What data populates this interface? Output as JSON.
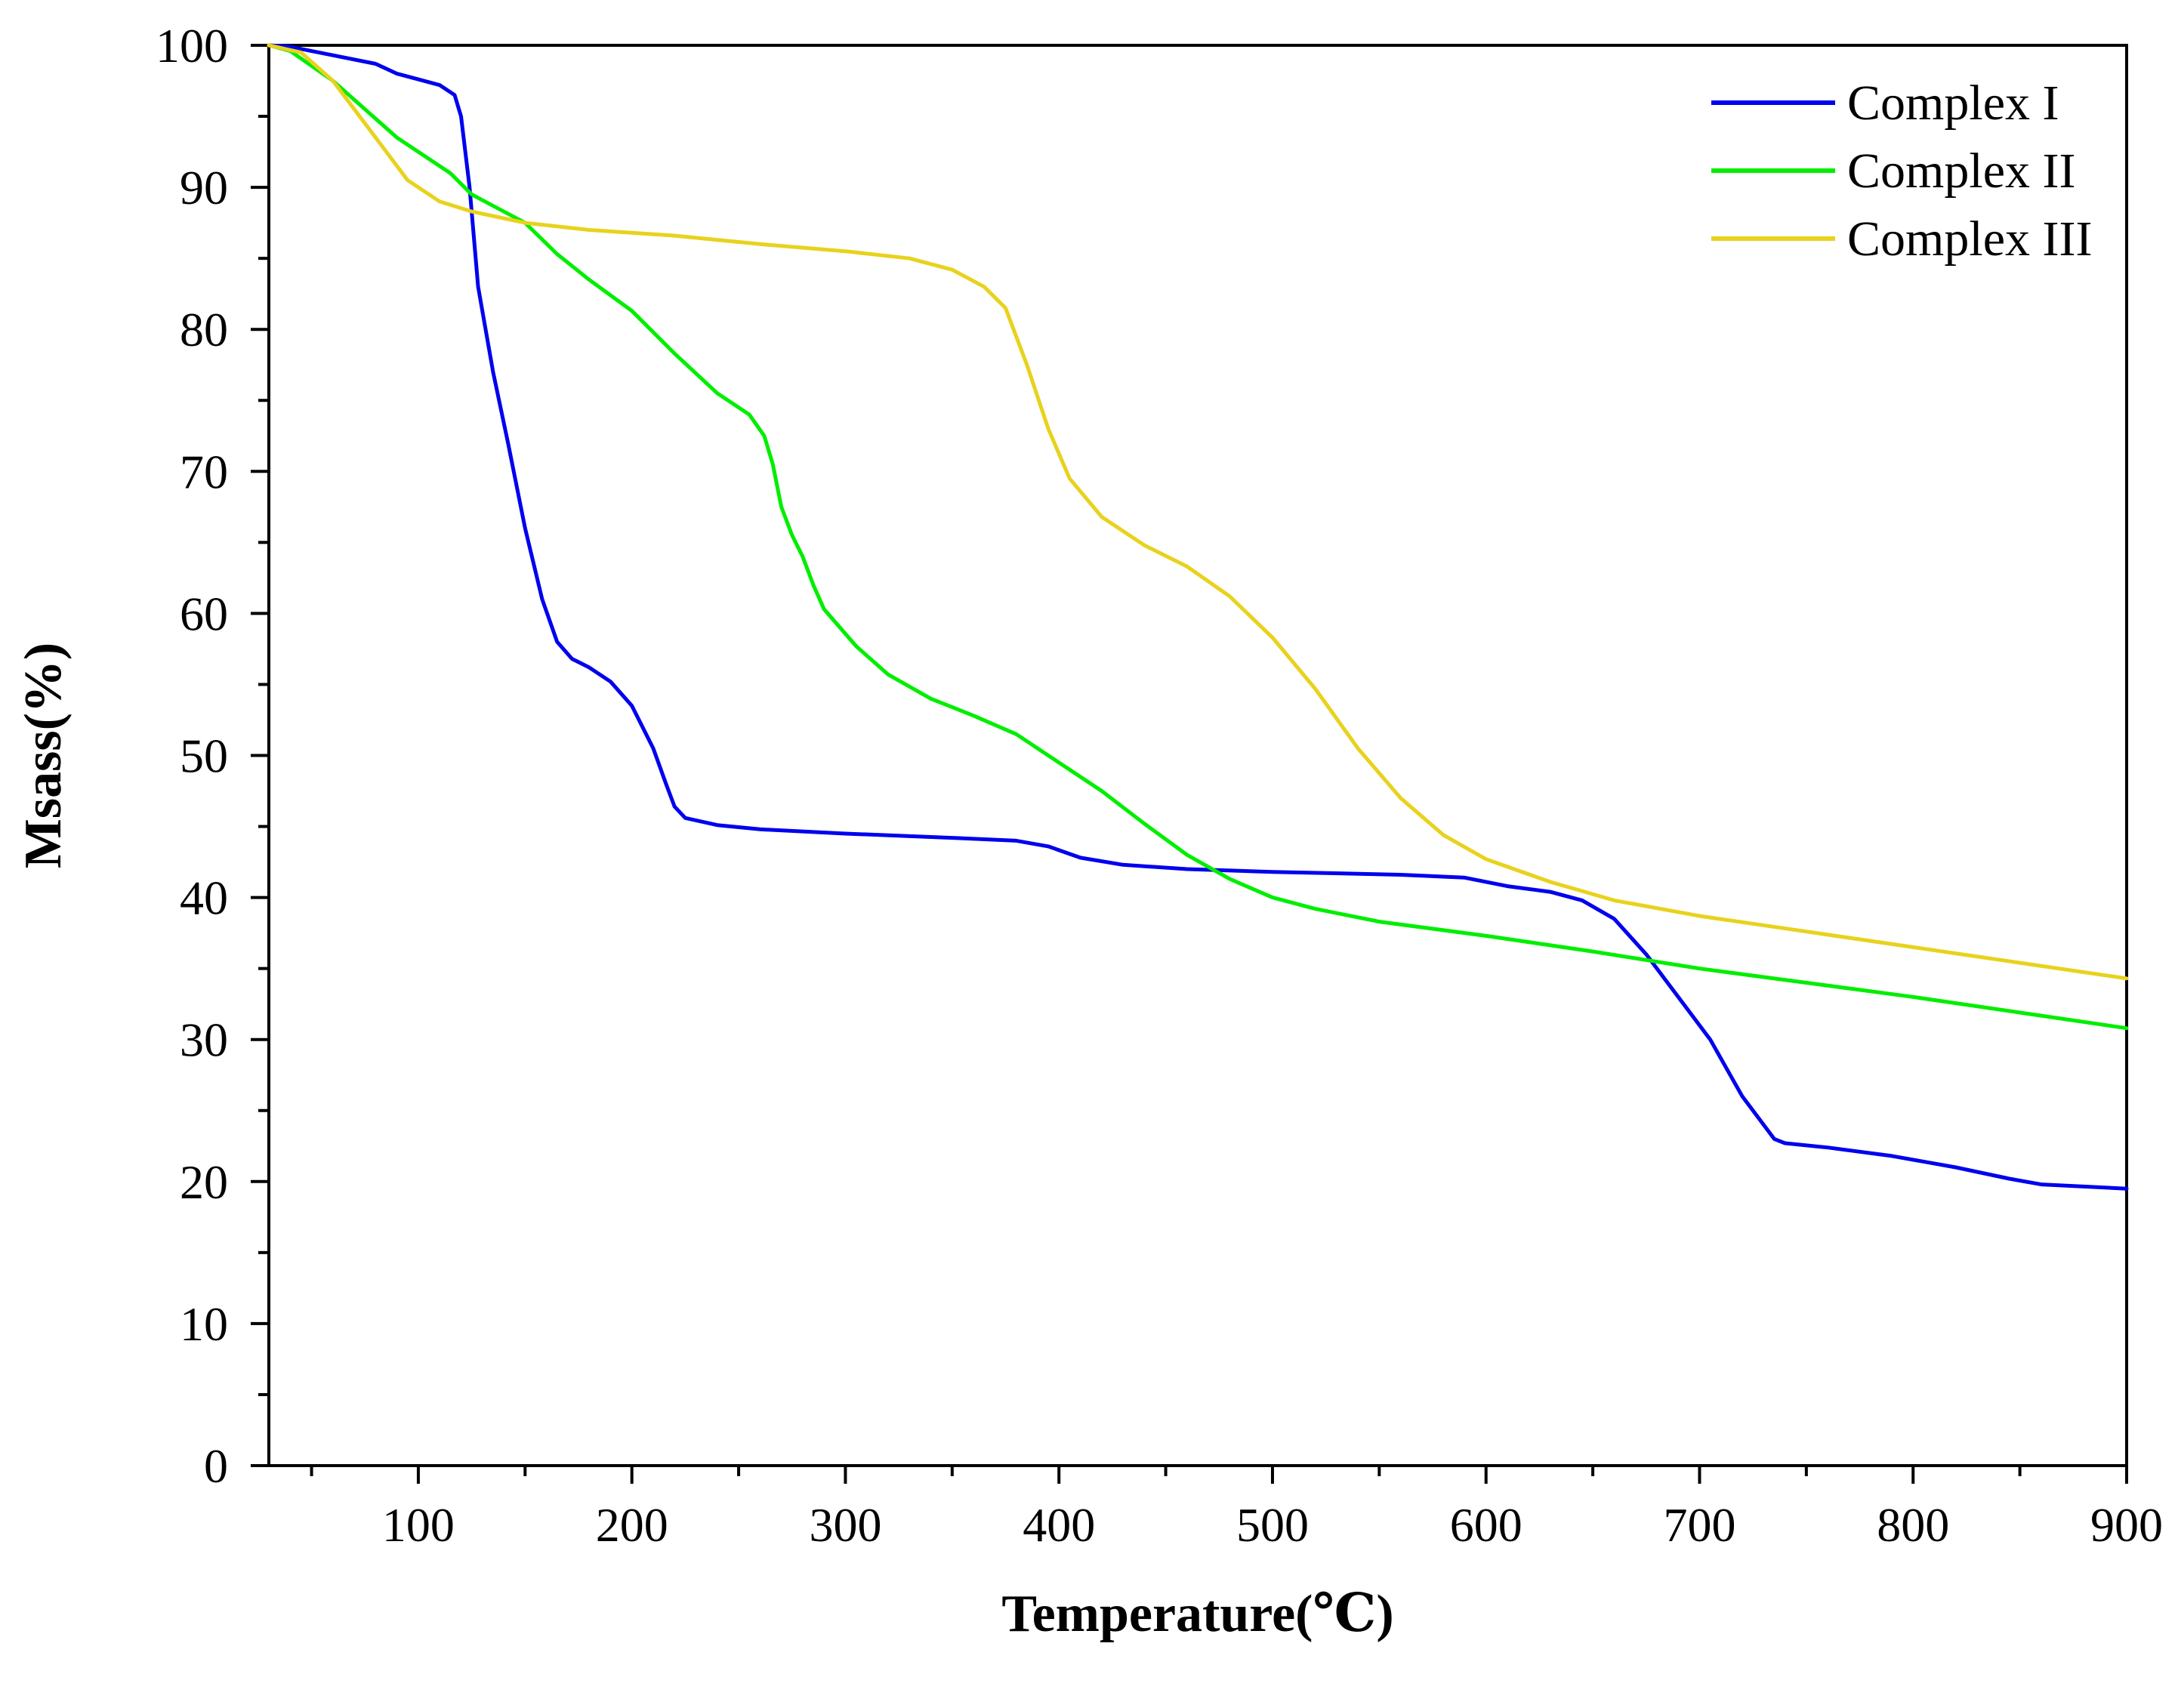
{
  "chart_data": {
    "type": "line",
    "title": "",
    "xlabel": "Temperature(℃)",
    "ylabel": "Msass(%)",
    "xlim": [
      30,
      900
    ],
    "ylim": [
      0,
      100
    ],
    "x_ticks": [
      100,
      200,
      300,
      400,
      500,
      600,
      700,
      800,
      900
    ],
    "x_tick_labels": [
      "100",
      "200",
      "300",
      "400",
      "500",
      "600",
      "700",
      "800",
      "900"
    ],
    "y_ticks": [
      0,
      10,
      20,
      30,
      40,
      50,
      60,
      70,
      80,
      90,
      100
    ],
    "y_tick_labels": [
      "0",
      "10",
      "20",
      "30",
      "40",
      "50",
      "60",
      "70",
      "80",
      "90",
      "100"
    ],
    "grid": false,
    "legend_position": "top-right",
    "series": [
      {
        "name": "Complex I",
        "color": "#0000ee",
        "points": [
          [
            30,
            100
          ],
          [
            40,
            99.9
          ],
          [
            60,
            99.3
          ],
          [
            80,
            98.7
          ],
          [
            90,
            98
          ],
          [
            100,
            97.6
          ],
          [
            110,
            97.2
          ],
          [
            117,
            96.5
          ],
          [
            120,
            95
          ],
          [
            124,
            90
          ],
          [
            128,
            83
          ],
          [
            135,
            77
          ],
          [
            142,
            72
          ],
          [
            150,
            66
          ],
          [
            158,
            61
          ],
          [
            165,
            58
          ],
          [
            172,
            56.8
          ],
          [
            180,
            56.2
          ],
          [
            190,
            55.2
          ],
          [
            200,
            53.5
          ],
          [
            210,
            50.5
          ],
          [
            216,
            48
          ],
          [
            220,
            46.4
          ],
          [
            225,
            45.6
          ],
          [
            240,
            45.1
          ],
          [
            260,
            44.8
          ],
          [
            300,
            44.5
          ],
          [
            350,
            44.2
          ],
          [
            380,
            44
          ],
          [
            395,
            43.6
          ],
          [
            410,
            42.8
          ],
          [
            430,
            42.3
          ],
          [
            460,
            42
          ],
          [
            500,
            41.8
          ],
          [
            560,
            41.6
          ],
          [
            590,
            41.4
          ],
          [
            610,
            40.8
          ],
          [
            630,
            40.4
          ],
          [
            645,
            39.8
          ],
          [
            660,
            38.5
          ],
          [
            675,
            36
          ],
          [
            690,
            33
          ],
          [
            705,
            30
          ],
          [
            720,
            26
          ],
          [
            735,
            23
          ],
          [
            740,
            22.7
          ],
          [
            760,
            22.4
          ],
          [
            790,
            21.8
          ],
          [
            820,
            21
          ],
          [
            845,
            20.2
          ],
          [
            860,
            19.8
          ],
          [
            900,
            19.5
          ]
        ]
      },
      {
        "name": "Complex II",
        "color": "#00ee00",
        "points": [
          [
            30,
            100
          ],
          [
            40,
            99.6
          ],
          [
            60,
            97.5
          ],
          [
            75,
            95.5
          ],
          [
            90,
            93.5
          ],
          [
            100,
            92.5
          ],
          [
            115,
            91
          ],
          [
            125,
            89.5
          ],
          [
            140,
            88.3
          ],
          [
            150,
            87.5
          ],
          [
            165,
            85.3
          ],
          [
            180,
            83.5
          ],
          [
            200,
            81.3
          ],
          [
            220,
            78.3
          ],
          [
            240,
            75.5
          ],
          [
            255,
            74
          ],
          [
            262,
            72.5
          ],
          [
            266,
            70.5
          ],
          [
            270,
            67.5
          ],
          [
            275,
            65.5
          ],
          [
            280,
            64
          ],
          [
            285,
            62
          ],
          [
            290,
            60.3
          ],
          [
            305,
            57.7
          ],
          [
            320,
            55.7
          ],
          [
            340,
            54
          ],
          [
            360,
            52.8
          ],
          [
            380,
            51.5
          ],
          [
            400,
            49.5
          ],
          [
            420,
            47.5
          ],
          [
            440,
            45.2
          ],
          [
            460,
            43
          ],
          [
            480,
            41.3
          ],
          [
            500,
            40
          ],
          [
            520,
            39.2
          ],
          [
            550,
            38.3
          ],
          [
            600,
            37.3
          ],
          [
            650,
            36.2
          ],
          [
            700,
            35
          ],
          [
            750,
            34
          ],
          [
            800,
            33
          ],
          [
            850,
            31.9
          ],
          [
            900,
            30.8
          ]
        ]
      },
      {
        "name": "Complex III",
        "color": "#e8d21d",
        "points": [
          [
            30,
            100
          ],
          [
            45,
            99.5
          ],
          [
            60,
            97.5
          ],
          [
            80,
            93.5
          ],
          [
            95,
            90.5
          ],
          [
            110,
            89
          ],
          [
            125,
            88.3
          ],
          [
            150,
            87.5
          ],
          [
            180,
            87
          ],
          [
            220,
            86.6
          ],
          [
            260,
            86
          ],
          [
            300,
            85.5
          ],
          [
            330,
            85
          ],
          [
            350,
            84.2
          ],
          [
            365,
            83
          ],
          [
            375,
            81.5
          ],
          [
            385,
            77.5
          ],
          [
            395,
            73
          ],
          [
            405,
            69.5
          ],
          [
            420,
            66.8
          ],
          [
            440,
            64.8
          ],
          [
            460,
            63.3
          ],
          [
            480,
            61.2
          ],
          [
            500,
            58.3
          ],
          [
            520,
            54.7
          ],
          [
            540,
            50.5
          ],
          [
            560,
            47
          ],
          [
            580,
            44.4
          ],
          [
            600,
            42.7
          ],
          [
            630,
            41.1
          ],
          [
            660,
            39.8
          ],
          [
            700,
            38.7
          ],
          [
            750,
            37.6
          ],
          [
            800,
            36.5
          ],
          [
            850,
            35.4
          ],
          [
            900,
            34.3
          ]
        ]
      }
    ]
  }
}
